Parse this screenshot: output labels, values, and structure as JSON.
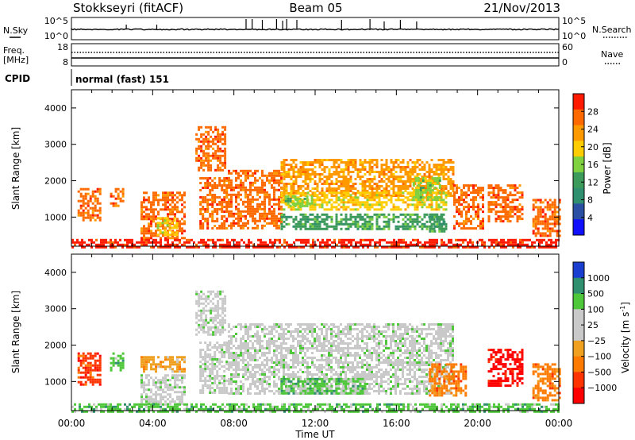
{
  "header": {
    "station": "Stokkseyri (fitACF)",
    "beam": "Beam 05",
    "date": "21/Nov/2013"
  },
  "params": {
    "nsky_label": "N.Sky",
    "nsearch_label": "N.Search",
    "freq_label": "Freq.",
    "mhz_label": "[MHz]",
    "nave_label": "Nave",
    "cpid_label": "CPID",
    "cpid_value": "normal (fast) 151",
    "noise_ticks_left": [
      "10^5",
      "10^0"
    ],
    "noise_ticks_right": [
      "10^5",
      "10^0"
    ],
    "freq_ticks": [
      "18",
      "8"
    ],
    "nave_ticks": [
      "60",
      "0"
    ]
  },
  "chart_data": [
    {
      "type": "heatmap",
      "name": "power",
      "ylabel": "Slant Range [km]",
      "yticks": [
        "4000",
        "3000",
        "2000",
        "1000"
      ],
      "ytick_values": [
        4000,
        3000,
        2000,
        1000
      ],
      "ylim": [
        200,
        4500
      ],
      "colorbar_label": "Power [dB]",
      "colorbar_ticks": [
        "28",
        "24",
        "20",
        "16",
        "12",
        "8",
        "4"
      ],
      "colorbar_colors": [
        "#ff1a00",
        "#ff6a00",
        "#ff9900",
        "#ffcc00",
        "#7fd13f",
        "#3c9a5a",
        "#2f8f6e",
        "#2a4fa3",
        "#1010ff"
      ],
      "regions": [
        {
          "t0": 0.3,
          "t1": 1.4,
          "r0": 900,
          "r1": 1800,
          "level": 1
        },
        {
          "t0": 1.9,
          "t1": 2.6,
          "r0": 1300,
          "r1": 1800,
          "level": 1
        },
        {
          "t0": 3.4,
          "t1": 5.6,
          "r0": 400,
          "r1": 1700,
          "level": 1
        },
        {
          "t0": 4.2,
          "t1": 5.2,
          "r0": 500,
          "r1": 1000,
          "level": 3
        },
        {
          "t0": 6.3,
          "t1": 7.6,
          "r0": 700,
          "r1": 2100,
          "level": 1
        },
        {
          "t0": 6.1,
          "t1": 7.6,
          "r0": 2300,
          "r1": 3500,
          "level": 1
        },
        {
          "t0": 7.7,
          "t1": 10.3,
          "r0": 700,
          "r1": 2300,
          "level": 1
        },
        {
          "t0": 10.3,
          "t1": 18.8,
          "r0": 1600,
          "r1": 2600,
          "level": 2
        },
        {
          "t0": 10.3,
          "t1": 18.4,
          "r0": 1200,
          "r1": 1700,
          "level": 3
        },
        {
          "t0": 10.3,
          "t1": 18.4,
          "r0": 700,
          "r1": 1100,
          "level": 5
        },
        {
          "t0": 10.5,
          "t1": 11.8,
          "r0": 1300,
          "r1": 1600,
          "level": 4
        },
        {
          "t0": 16.8,
          "t1": 18.1,
          "r0": 1500,
          "r1": 2100,
          "level": 4
        },
        {
          "t0": 17.6,
          "t1": 18.4,
          "r0": 600,
          "r1": 1100,
          "level": 5
        },
        {
          "t0": 18.8,
          "t1": 20.3,
          "r0": 700,
          "r1": 1900,
          "level": 1
        },
        {
          "t0": 20.5,
          "t1": 22.2,
          "r0": 900,
          "r1": 1900,
          "level": 1
        },
        {
          "t0": 22.7,
          "t1": 24.0,
          "r0": 500,
          "r1": 1500,
          "level": 1
        },
        {
          "t0": 0.0,
          "t1": 24.0,
          "r0": 200,
          "r1": 400,
          "level": 0
        }
      ]
    },
    {
      "type": "heatmap",
      "name": "velocity",
      "ylabel": "Slant Range [km]",
      "yticks": [
        "4000",
        "3000",
        "2000",
        "1000"
      ],
      "ytick_values": [
        4000,
        3000,
        2000,
        1000
      ],
      "ylim": [
        200,
        4500
      ],
      "colorbar_label": "Velocity [m s",
      "colorbar_label_sup": "-1",
      "colorbar_label_end": "]",
      "colorbar_ticks": [
        "1000",
        "500",
        "100",
        "25",
        "−25",
        "−100",
        "−500",
        "−1000"
      ],
      "colorbar_colors": [
        "#1a3fd0",
        "#2f8f6e",
        "#4fc73a",
        "#c9c9c9",
        "#c9c9c9",
        "#f0a020",
        "#ff7a00",
        "#ff3300",
        "#ff0000"
      ],
      "regions": [
        {
          "t0": 0.3,
          "t1": 1.4,
          "r0": 900,
          "r1": 1800,
          "level": 7
        },
        {
          "t0": 1.9,
          "t1": 2.6,
          "r0": 1300,
          "r1": 1800,
          "level": 2
        },
        {
          "t0": 3.4,
          "t1": 5.6,
          "r0": 1300,
          "r1": 1700,
          "level": 5
        },
        {
          "t0": 3.4,
          "t1": 5.6,
          "r0": 400,
          "r1": 1200,
          "level": 3
        },
        {
          "t0": 6.3,
          "t1": 7.6,
          "r0": 700,
          "r1": 2100,
          "level": 3
        },
        {
          "t0": 6.1,
          "t1": 7.6,
          "r0": 2300,
          "r1": 3500,
          "level": 3
        },
        {
          "t0": 7.7,
          "t1": 18.8,
          "r0": 700,
          "r1": 2600,
          "level": 3
        },
        {
          "t0": 10.3,
          "t1": 14.5,
          "r0": 700,
          "r1": 1100,
          "level": 2
        },
        {
          "t0": 17.6,
          "t1": 19.4,
          "r0": 600,
          "r1": 1500,
          "level": 6
        },
        {
          "t0": 20.5,
          "t1": 22.2,
          "r0": 900,
          "r1": 1900,
          "level": 8
        },
        {
          "t0": 22.7,
          "t1": 24.0,
          "r0": 500,
          "r1": 1500,
          "level": 6
        },
        {
          "t0": 0.0,
          "t1": 24.0,
          "r0": 200,
          "r1": 400,
          "level": 2
        }
      ]
    }
  ],
  "x_axis": {
    "ticks": [
      "00:00",
      "04:00",
      "08:00",
      "12:00",
      "16:00",
      "20:00",
      "00:00"
    ],
    "tick_hours": [
      0,
      4,
      8,
      12,
      16,
      20,
      24
    ],
    "xlim": [
      0,
      24
    ],
    "label": "Time UT"
  }
}
